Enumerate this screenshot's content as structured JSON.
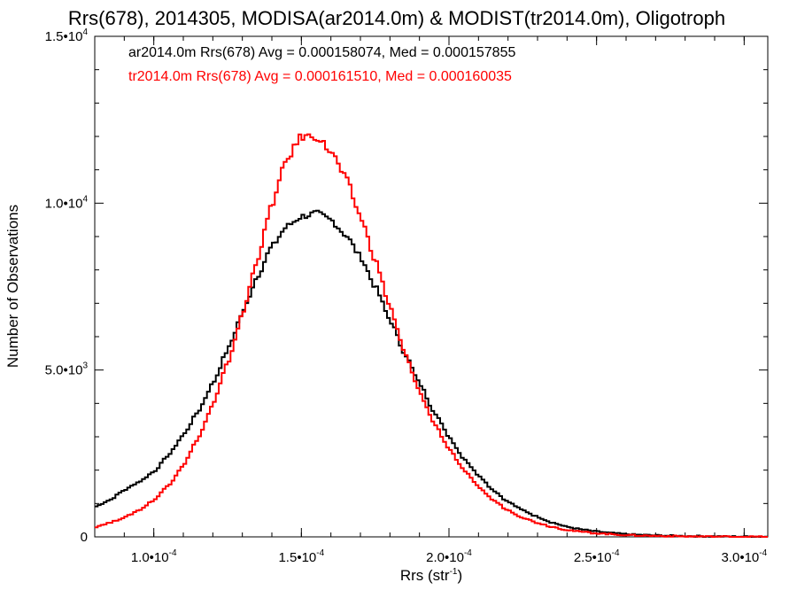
{
  "chart_data": {
    "type": "line",
    "title": "Rrs(678), 2014305, MODISA(ar2014.0m) & MODIST(tr2014.0m), Oligotroph",
    "xlabel": "Rrs (str",
    "xlabel_sup": "-1",
    "xlabel_tail": ")",
    "ylabel": "Number of Observations",
    "xlim": [
      8e-05,
      0.000308
    ],
    "ylim": [
      0,
      15000
    ],
    "grid": false,
    "x_ticks": [
      {
        "value": 0.0001,
        "mant": "1.0",
        "exp": "-4"
      },
      {
        "value": 0.00015,
        "mant": "1.5",
        "exp": "-4"
      },
      {
        "value": 0.0002,
        "mant": "2.0",
        "exp": "-4"
      },
      {
        "value": 0.00025,
        "mant": "2.5",
        "exp": "-4"
      },
      {
        "value": 0.0003,
        "mant": "3.0",
        "exp": "-4"
      }
    ],
    "y_ticks": [
      {
        "value": 0,
        "mant": "0",
        "exp": ""
      },
      {
        "value": 5000,
        "mant": "5.0",
        "exp": "3"
      },
      {
        "value": 10000,
        "mant": "1.0",
        "exp": "4"
      },
      {
        "value": 15000,
        "mant": "1.5",
        "exp": "4"
      }
    ],
    "series": [
      {
        "name": "ar2014.0m Rrs(678) Avg = 0.000158074, Med = 0.000157855",
        "color": "#000000",
        "x": [
          8e-05,
          8.5e-05,
          9e-05,
          9.5e-05,
          0.0001,
          0.000105,
          0.00011,
          0.000115,
          0.00012,
          0.000125,
          0.00013,
          0.000135,
          0.00014,
          0.000145,
          0.00015,
          0.000155,
          0.00016,
          0.000165,
          0.00017,
          0.000175,
          0.00018,
          0.000185,
          0.00019,
          0.000195,
          0.0002,
          0.000205,
          0.00021,
          0.000215,
          0.00022,
          0.000225,
          0.00023,
          0.000235,
          0.00024,
          0.000245,
          0.00025,
          0.000255,
          0.00026,
          0.000265,
          0.00027,
          0.000275,
          0.00028,
          0.000285,
          0.00029,
          0.000295,
          0.0003,
          0.000305
        ],
        "y": [
          900,
          1100,
          1400,
          1650,
          1950,
          2450,
          3050,
          3750,
          4600,
          5600,
          6700,
          7800,
          8700,
          9300,
          9600,
          9700,
          9500,
          9050,
          8400,
          7500,
          6500,
          5500,
          4600,
          3750,
          3000,
          2350,
          1850,
          1400,
          1050,
          800,
          600,
          430,
          300,
          220,
          160,
          115,
          80,
          60,
          45,
          35,
          25,
          20,
          15,
          10,
          8,
          5
        ]
      },
      {
        "name": "tr2014.0m Rrs(678) Avg = 0.000161510, Med = 0.000160035",
        "color": "#ff0000",
        "x": [
          8e-05,
          8.5e-05,
          9e-05,
          9.5e-05,
          0.0001,
          0.000105,
          0.00011,
          0.000115,
          0.00012,
          0.000125,
          0.00013,
          0.000135,
          0.00014,
          0.000145,
          0.00015,
          0.000155,
          0.00016,
          0.000165,
          0.00017,
          0.000175,
          0.00018,
          0.000185,
          0.00019,
          0.000195,
          0.0002,
          0.000205,
          0.00021,
          0.000215,
          0.00022,
          0.000225,
          0.00023,
          0.000235,
          0.00024,
          0.000245,
          0.00025,
          0.000255,
          0.00026,
          0.000265,
          0.00027,
          0.000275,
          0.00028,
          0.000285,
          0.00029,
          0.000295,
          0.0003,
          0.000305
        ],
        "y": [
          300,
          420,
          580,
          800,
          1100,
          1550,
          2150,
          2950,
          3950,
          5200,
          6650,
          8300,
          9950,
          11300,
          12000,
          12000,
          11550,
          10750,
          9600,
          8300,
          6900,
          5500,
          4350,
          3400,
          2650,
          2000,
          1500,
          1100,
          800,
          580,
          420,
          300,
          210,
          150,
          110,
          80,
          55,
          40,
          30,
          22,
          16,
          12,
          9,
          7,
          5,
          4
        ]
      }
    ]
  }
}
